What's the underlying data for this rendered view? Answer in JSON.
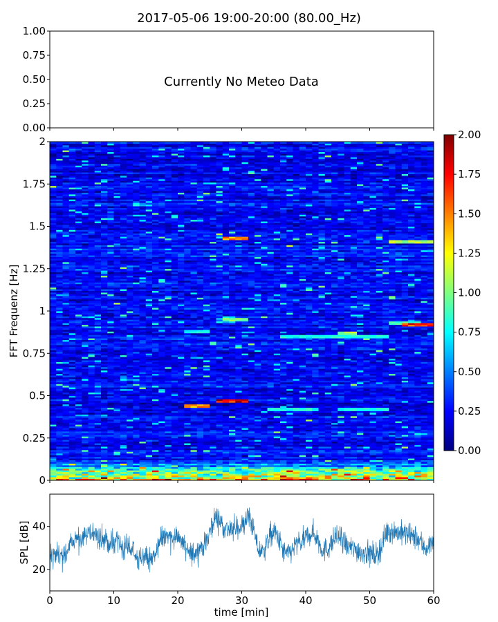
{
  "title": "2017-05-06 19:00-20:00 (80.00_Hz)",
  "colors": {
    "colormap": [
      "#00007f",
      "#0000ff",
      "#007fff",
      "#00ffff",
      "#7fff7f",
      "#ffff00",
      "#ff7f00",
      "#ff0000",
      "#7f0000"
    ],
    "spl_line": "#1f77b4"
  },
  "chart_data": [
    {
      "type": "line",
      "panel": "meteo",
      "annotation": "Currently No Meteo Data",
      "ylim": [
        0,
        1
      ],
      "yticks": [
        0,
        0.25,
        0.5,
        0.75,
        1
      ],
      "ytick_labels": [
        "0.00",
        "0.25",
        "0.50",
        "0.75",
        "1.00"
      ],
      "xlim": [
        0,
        60
      ],
      "series": []
    },
    {
      "type": "heatmap",
      "panel": "spectrogram",
      "ylabel": "FFT Frequenz [Hz]",
      "xlim": [
        0,
        60
      ],
      "ylim": [
        0,
        2
      ],
      "yticks": [
        0,
        0.25,
        0.5,
        0.75,
        1,
        1.25,
        1.5,
        1.75,
        2
      ],
      "ytick_labels": [
        "0",
        "0.25",
        "0.5",
        "0.75",
        "1",
        "1.25",
        "1.5",
        "1.75",
        "2"
      ],
      "colorbar": {
        "range": [
          0,
          2
        ],
        "ticks": [
          0,
          0.25,
          0.5,
          0.75,
          1,
          1.25,
          1.5,
          1.75,
          2
        ],
        "tick_labels": [
          "0.00",
          "0.25",
          "0.50",
          "0.75",
          "1.00",
          "1.25",
          "1.50",
          "1.75",
          "2.00"
        ]
      },
      "background_level": 0.25,
      "low_freq_band": {
        "freq_max": 0.12,
        "level": 1.1
      },
      "features": [
        {
          "t": [
            27.5,
            31
          ],
          "f": 1.43,
          "value": 1.5
        },
        {
          "t": [
            26.5,
            31
          ],
          "f": 0.47,
          "value": 1.8
        },
        {
          "t": [
            21.5,
            25
          ],
          "f": 0.44,
          "value": 1.5
        },
        {
          "t": [
            53,
            60
          ],
          "f": 1.41,
          "value": 1.1
        },
        {
          "t": [
            55,
            60
          ],
          "f": 0.92,
          "value": 1.7
        },
        {
          "t": [
            53,
            58
          ],
          "f": 0.93,
          "value": 0.9
        },
        {
          "t": [
            27.5,
            31
          ],
          "f": 0.95,
          "value": 1.0
        },
        {
          "t": [
            36,
            53
          ],
          "f": 0.85,
          "value": 0.8
        },
        {
          "t": [
            45,
            48
          ],
          "f": 0.87,
          "value": 1.1
        },
        {
          "t": [
            21,
            25
          ],
          "f": 0.88,
          "value": 0.8
        },
        {
          "t": [
            34,
            42
          ],
          "f": 0.42,
          "value": 0.8
        },
        {
          "t": [
            45,
            53
          ],
          "f": 0.42,
          "value": 0.8
        }
      ]
    },
    {
      "type": "line",
      "panel": "spl",
      "ylabel": "SPL [dB]",
      "xlabel": "time [min]",
      "xlim": [
        0,
        60
      ],
      "ylim": [
        10,
        55
      ],
      "xticks": [
        0,
        10,
        20,
        30,
        40,
        50,
        60
      ],
      "xtick_labels": [
        "0",
        "10",
        "20",
        "30",
        "40",
        "50",
        "60"
      ],
      "yticks": [
        20,
        40
      ],
      "ytick_labels": [
        "20",
        "40"
      ],
      "series": [
        {
          "x": [
            0,
            2,
            4,
            6,
            8,
            10,
            12,
            14,
            16,
            18,
            20,
            22,
            24,
            26,
            28,
            30,
            31,
            33,
            35,
            37,
            39,
            41,
            43,
            45,
            47,
            49,
            51,
            53,
            55,
            57,
            59,
            60
          ],
          "values": [
            27,
            26,
            33,
            37,
            34,
            32,
            30,
            26,
            25,
            36,
            35,
            27,
            31,
            44,
            38,
            40,
            44,
            28,
            37,
            27,
            32,
            37,
            29,
            35,
            30,
            28,
            27,
            38,
            37,
            35,
            30,
            34
          ],
          "spread": 5
        }
      ]
    }
  ]
}
